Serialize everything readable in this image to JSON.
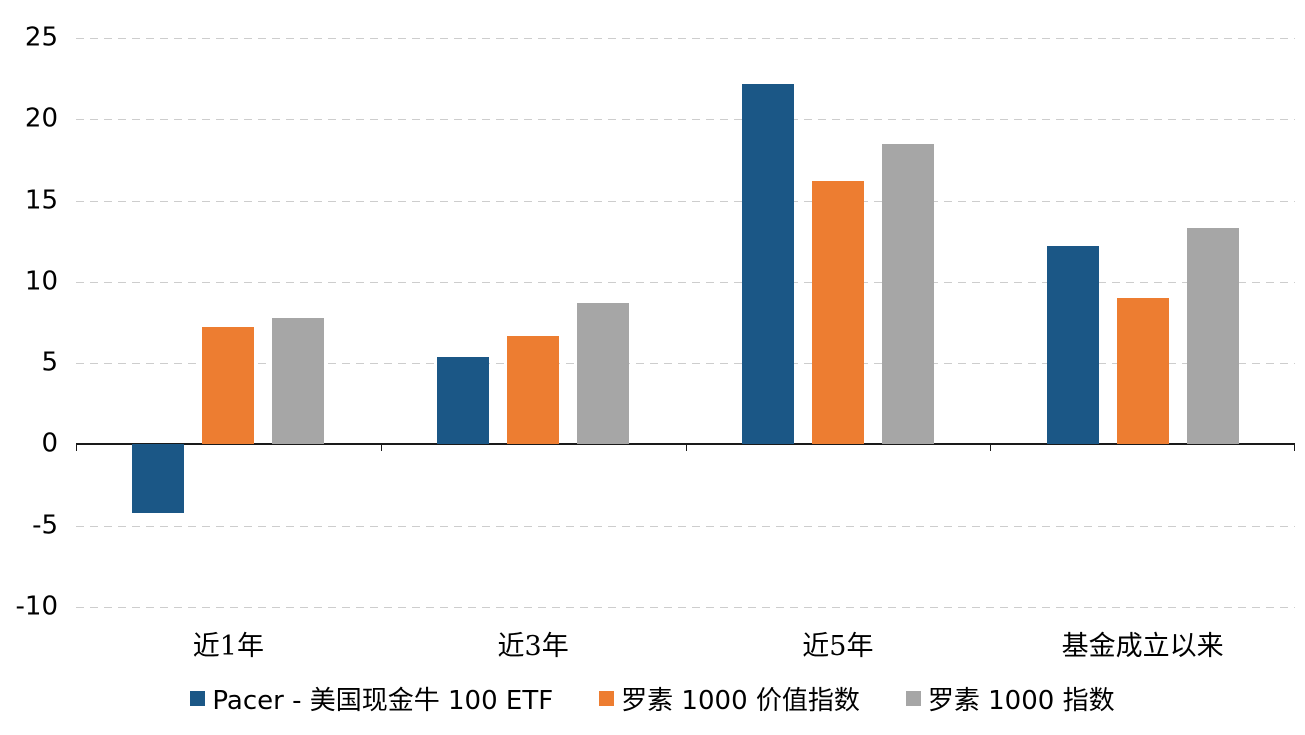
{
  "chart_data": {
    "type": "bar",
    "title": "",
    "xlabel": "",
    "ylabel": "",
    "categories": [
      "近1年",
      "近3年",
      "近5年",
      "基金成立以来"
    ],
    "series": [
      {
        "name": "Pacer - 美国现金牛 100 ETF",
        "color": "#1b5786",
        "values": [
          -4.2,
          5.4,
          22.2,
          12.2
        ]
      },
      {
        "name": "罗素 1000 价值指数",
        "color": "#ED7D31",
        "values": [
          7.2,
          6.7,
          16.2,
          9.0
        ]
      },
      {
        "name": "罗素 1000 指数",
        "color": "#A6A6A6",
        "values": [
          7.8,
          8.7,
          18.5,
          13.3
        ]
      }
    ],
    "ylim": [
      -10,
      25
    ],
    "yticks": [
      25,
      20,
      15,
      10,
      5,
      0,
      -5,
      -10
    ],
    "grid": "dashed-horizontal",
    "legend_position": "bottom",
    "colors": {
      "gridline": "#cdcdcd",
      "zero_axis": "#1a1a1a",
      "text": "#000000",
      "background": "#ffffff"
    }
  }
}
